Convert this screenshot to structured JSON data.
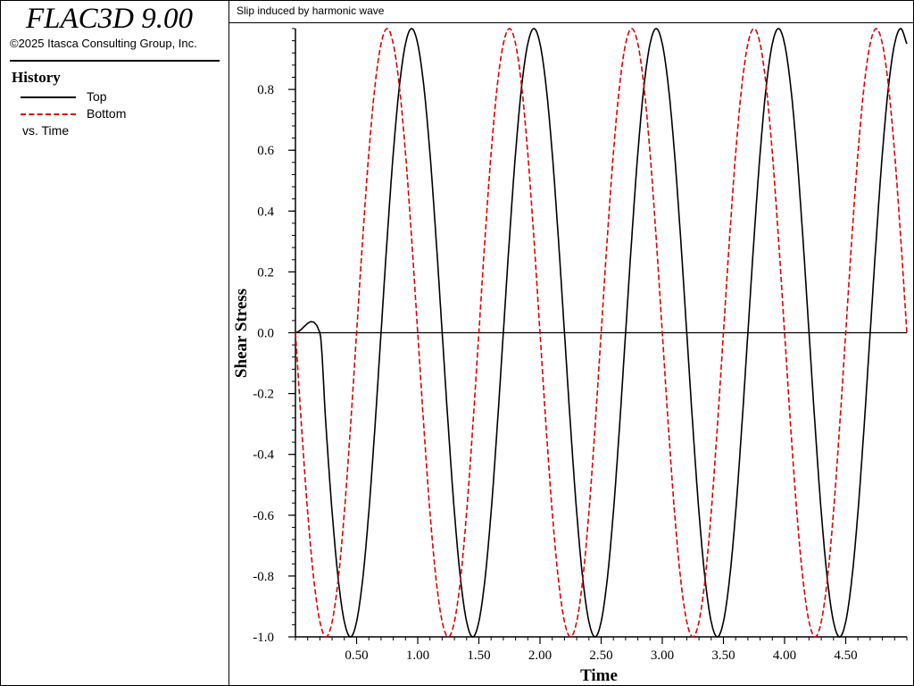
{
  "app": {
    "title": "FLAC3D 9.00",
    "copyright": "©2025 Itasca Consulting Group, Inc."
  },
  "history_panel": {
    "heading": "History",
    "legend": [
      {
        "label": "Top",
        "color": "#000000",
        "style": "solid"
      },
      {
        "label": "Bottom",
        "color": "#e00000",
        "style": "dashed"
      }
    ],
    "vs_label": "vs. Time"
  },
  "chart_data": {
    "type": "line",
    "title": "Slip induced by harmonic wave",
    "xlabel": "Time",
    "ylabel": "Shear Stress",
    "xlim": [
      0.0,
      5.0
    ],
    "ylim": [
      -1.0,
      1.0
    ],
    "x_ticks": [
      0.5,
      1.0,
      1.5,
      2.0,
      2.5,
      3.0,
      3.5,
      4.0,
      4.5
    ],
    "x_tick_labels": [
      "0.50",
      "1.00",
      "1.50",
      "2.00",
      "2.50",
      "3.00",
      "3.50",
      "4.00",
      "4.50"
    ],
    "y_ticks": [
      -1.0,
      -0.8,
      -0.6,
      -0.4,
      -0.2,
      0.0,
      0.2,
      0.4,
      0.6,
      0.8
    ],
    "y_tick_labels": [
      "-1.0",
      "-0.8",
      "-0.6",
      "-0.4",
      "-0.2",
      "0.0",
      "0.2",
      "0.4",
      "0.6",
      "0.8"
    ],
    "grid": false,
    "legend_location": "left panel",
    "series": [
      {
        "name": "Top",
        "color": "#000000",
        "style": "solid",
        "x": [
          0.0,
          0.2,
          0.25,
          0.3,
          0.35,
          0.4,
          0.45,
          0.5,
          0.55,
          0.6,
          0.65,
          0.7,
          0.75,
          0.8,
          0.85,
          0.9,
          0.95,
          1.0,
          1.05,
          1.1,
          1.15,
          1.2,
          1.25,
          1.3,
          1.35,
          1.4,
          1.45,
          1.5,
          1.55,
          1.6,
          1.65,
          1.7,
          1.75,
          1.8,
          1.85,
          1.9,
          1.95,
          2.0,
          2.05,
          2.1,
          2.15,
          2.2,
          2.25,
          2.3,
          2.35,
          2.4,
          2.45,
          2.5,
          2.55,
          2.6,
          2.65,
          2.7,
          2.75,
          2.8,
          2.85,
          2.9,
          2.95,
          3.0,
          3.05,
          3.1,
          3.15,
          3.2,
          3.25,
          3.3,
          3.35,
          3.4,
          3.45,
          3.5,
          3.55,
          3.6,
          3.65,
          3.7,
          3.75,
          3.8,
          3.85,
          3.9,
          3.95,
          4.0,
          4.05,
          4.1,
          4.15,
          4.2,
          4.25,
          4.3,
          4.35,
          4.4,
          4.45,
          4.5,
          4.55,
          4.6,
          4.65,
          4.7,
          4.75,
          4.8,
          4.85,
          4.9,
          4.95,
          5.0
        ],
        "values": [
          0.0,
          0.0,
          -0.31,
          -0.59,
          -0.81,
          -0.95,
          -1.0,
          -0.95,
          -0.81,
          -0.59,
          -0.31,
          0.0,
          0.31,
          0.59,
          0.81,
          0.95,
          1.0,
          0.95,
          0.81,
          0.59,
          0.31,
          0.0,
          -0.31,
          -0.59,
          -0.81,
          -0.95,
          -1.0,
          -0.95,
          -0.81,
          -0.59,
          -0.31,
          0.0,
          0.31,
          0.59,
          0.81,
          0.95,
          1.0,
          0.95,
          0.81,
          0.59,
          0.31,
          0.0,
          -0.31,
          -0.59,
          -0.81,
          -0.95,
          -1.0,
          -0.95,
          -0.81,
          -0.59,
          -0.31,
          0.0,
          0.31,
          0.59,
          0.81,
          0.95,
          1.0,
          0.95,
          0.81,
          0.59,
          0.31,
          0.0,
          -0.31,
          -0.59,
          -0.81,
          -0.95,
          -1.0,
          -0.95,
          -0.81,
          -0.59,
          -0.31,
          0.0,
          0.31,
          0.59,
          0.81,
          0.95,
          1.0,
          0.95,
          0.81,
          0.59,
          0.31,
          0.0,
          -0.31,
          -0.59,
          -0.81,
          -0.95,
          -1.0,
          -0.95,
          -0.81,
          -0.59,
          -0.31,
          0.0,
          0.31,
          0.59,
          0.81,
          0.95,
          1.0,
          0.95
        ]
      },
      {
        "name": "Bottom",
        "color": "#e00000",
        "style": "dashed",
        "x": [
          0.0,
          0.05,
          0.1,
          0.15,
          0.2,
          0.25,
          0.3,
          0.35,
          0.4,
          0.45,
          0.5,
          0.55,
          0.6,
          0.65,
          0.7,
          0.75,
          0.8,
          0.85,
          0.9,
          0.95,
          1.0,
          1.05,
          1.1,
          1.15,
          1.2,
          1.25,
          1.3,
          1.35,
          1.4,
          1.45,
          1.5,
          1.55,
          1.6,
          1.65,
          1.7,
          1.75,
          1.8,
          1.85,
          1.9,
          1.95,
          2.0,
          2.05,
          2.1,
          2.15,
          2.2,
          2.25,
          2.3,
          2.35,
          2.4,
          2.45,
          2.5,
          2.55,
          2.6,
          2.65,
          2.7,
          2.75,
          2.8,
          2.85,
          2.9,
          2.95,
          3.0,
          3.05,
          3.1,
          3.15,
          3.2,
          3.25,
          3.3,
          3.35,
          3.4,
          3.45,
          3.5,
          3.55,
          3.6,
          3.65,
          3.7,
          3.75,
          3.8,
          3.85,
          3.9,
          3.95,
          4.0,
          4.05,
          4.1,
          4.15,
          4.2,
          4.25,
          4.3,
          4.35,
          4.4,
          4.45,
          4.5,
          4.55,
          4.6,
          4.65,
          4.7,
          4.75,
          4.8,
          4.85,
          4.9,
          4.95,
          5.0
        ],
        "values": [
          0.0,
          -0.31,
          -0.59,
          -0.81,
          -0.95,
          -1.0,
          -0.95,
          -0.81,
          -0.59,
          -0.31,
          0.0,
          0.31,
          0.59,
          0.81,
          0.95,
          1.0,
          0.95,
          0.81,
          0.59,
          0.31,
          0.0,
          -0.31,
          -0.59,
          -0.81,
          -0.95,
          -1.0,
          -0.95,
          -0.81,
          -0.59,
          -0.31,
          0.0,
          0.31,
          0.59,
          0.81,
          0.95,
          1.0,
          0.95,
          0.81,
          0.59,
          0.31,
          0.0,
          -0.31,
          -0.59,
          -0.81,
          -0.95,
          -1.0,
          -0.95,
          -0.81,
          -0.59,
          -0.31,
          0.0,
          0.31,
          0.59,
          0.81,
          0.95,
          1.0,
          0.95,
          0.81,
          0.59,
          0.31,
          0.0,
          -0.31,
          -0.59,
          -0.81,
          -0.95,
          -1.0,
          -0.95,
          -0.81,
          -0.59,
          -0.31,
          0.0,
          0.31,
          0.59,
          0.81,
          0.95,
          1.0,
          0.95,
          0.81,
          0.59,
          0.31,
          0.0,
          -0.31,
          -0.59,
          -0.81,
          -0.95,
          -1.0,
          -0.95,
          -0.81,
          -0.59,
          -0.31,
          0.0,
          0.31,
          0.59,
          0.81,
          0.95,
          1.0,
          0.95,
          0.81,
          0.59,
          0.31,
          0.0
        ]
      }
    ]
  }
}
